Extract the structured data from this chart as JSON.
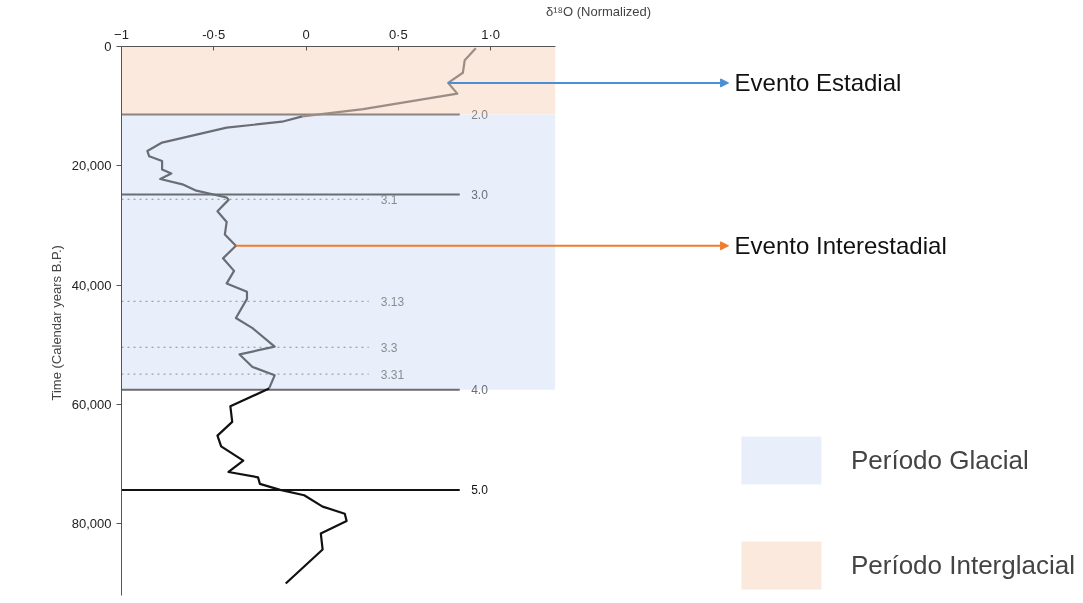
{
  "chart_data": {
    "type": "line",
    "xlabel": "δ¹⁸O (Normalized)",
    "ylabel": "Time (Calendar years  B.P.)",
    "xlim": [
      -1,
      1.35
    ],
    "ylim": [
      92000,
      0
    ],
    "xticks": [
      -1,
      {
        "value": -0.5,
        "label": "-0·5"
      },
      0,
      {
        "value": 0.5,
        "label": "0·5"
      },
      {
        "value": 1.0,
        "label": "1·0"
      }
    ],
    "yticks": [
      0,
      {
        "value": 20000,
        "label": "20,000"
      },
      {
        "value": 40000,
        "label": "40,000"
      },
      {
        "value": 60000,
        "label": "60,000"
      },
      {
        "value": 80000,
        "label": "80,000"
      }
    ],
    "series": [
      {
        "color": "#9a8d85",
        "x": [
          0.92,
          0.86,
          0.85,
          0.77,
          0.82,
          0.31,
          -0.02
        ],
        "values": [
          300,
          2300,
          4400,
          6100,
          7900,
          10500,
          11700
        ]
      },
      {
        "color": "#6b6d75",
        "x": [
          -0.02,
          -0.13,
          -0.43,
          -0.78,
          -0.86,
          -0.85,
          -0.78,
          -0.78,
          -0.73,
          -0.79,
          -0.67,
          -0.6,
          -0.43,
          -0.42,
          -0.48,
          -0.43,
          -0.44,
          -0.38,
          -0.45,
          -0.39,
          -0.43,
          -0.32,
          -0.32,
          -0.38,
          -0.29,
          -0.17,
          -0.36,
          -0.29,
          -0.17,
          -0.2
        ],
        "values": [
          11700,
          12600,
          13600,
          16100,
          17500,
          18400,
          19200,
          20600,
          21300,
          22200,
          23100,
          24100,
          25300,
          25700,
          27600,
          29400,
          31500,
          33400,
          35500,
          37600,
          39700,
          41100,
          42300,
          45500,
          47200,
          50300,
          51600,
          53700,
          55100,
          57300
        ]
      },
      {
        "color": "#111111",
        "x": [
          -0.2,
          -0.41,
          -0.4,
          -0.48,
          -0.46,
          -0.34,
          -0.42,
          -0.26,
          -0.25,
          -0.14,
          -0.01,
          0.09,
          0.21,
          0.22,
          0.08,
          0.09,
          -0.11
        ],
        "values": [
          57300,
          60300,
          62900,
          65200,
          67000,
          69400,
          71300,
          72200,
          73300,
          74300,
          75200,
          77100,
          78300,
          79500,
          81600,
          84300,
          90000
        ]
      }
    ],
    "ref_lines": [
      {
        "axis": "y",
        "value": 11400,
        "color": "#8c8480",
        "line_style": "solid"
      },
      {
        "axis": "y",
        "value": 24800,
        "color": "#6b6d75",
        "line_style": "solid"
      },
      {
        "axis": "y",
        "value": 25600,
        "color": "#8a8c92",
        "line_style": "dotted"
      },
      {
        "axis": "y",
        "value": 42700,
        "color": "#8a8c92",
        "line_style": "dotted"
      },
      {
        "axis": "y",
        "value": 50400,
        "color": "#8a8c92",
        "line_style": "dotted"
      },
      {
        "axis": "y",
        "value": 54900,
        "color": "#8a8c92",
        "line_style": "dotted"
      },
      {
        "axis": "y",
        "value": 57500,
        "color": "#6b6d75",
        "line_style": "solid"
      },
      {
        "axis": "y",
        "value": 74300,
        "color": "#111111",
        "line_style": "solid"
      }
    ],
    "bands": [
      {
        "axis": "y",
        "from": 0,
        "to": 11400,
        "label": "Período Interglacial",
        "color": "#fbe9dd"
      },
      {
        "axis": "y",
        "from": 11400,
        "to": 57500,
        "label": "Período Glacial",
        "color": "#e9effa"
      }
    ],
    "annotations": [
      {
        "text": "Evento Estadial",
        "x": 0.77,
        "y": 6100
      },
      {
        "text": "Evento Interestadial",
        "x": -0.38,
        "y": 33400
      },
      {
        "text": "2.0",
        "x": 0.83,
        "y": 11400
      },
      {
        "text": "3.0",
        "x": 0.83,
        "y": 24800
      },
      {
        "text": "3.1",
        "x": 0.34,
        "y": 25600
      },
      {
        "text": "3.13",
        "x": 0.34,
        "y": 42700
      },
      {
        "text": "3.3",
        "x": 0.34,
        "y": 50400
      },
      {
        "text": "3.31",
        "x": 0.34,
        "y": 54900
      },
      {
        "text": "4.0",
        "x": 0.83,
        "y": 57500
      },
      {
        "text": "5.0",
        "x": 0.83,
        "y": 74300
      }
    ],
    "legend": "bottom right",
    "grid": false,
    "line_style": "solid"
  }
}
